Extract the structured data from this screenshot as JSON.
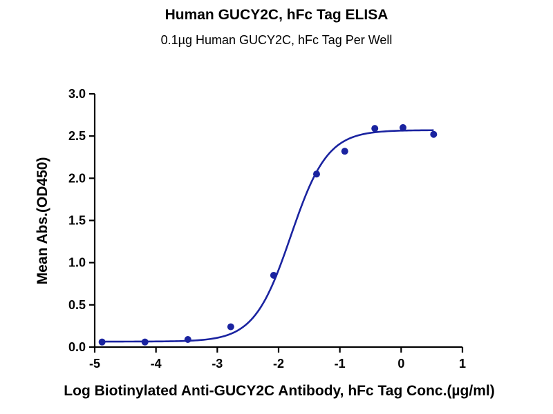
{
  "chart_data": {
    "type": "scatter",
    "title": "Human GUCY2C, hFc Tag ELISA",
    "subtitle": "0.1µg Human GUCY2C, hFc Tag Per Well",
    "xlabel": "Log Biotinylated Anti-GUCY2C Antibody, hFc Tag Conc.(µg/ml)",
    "ylabel": "Mean Abs.(OD450)",
    "xlim": [
      -5,
      1
    ],
    "ylim": [
      0,
      3
    ],
    "xticks": [
      "-5",
      "-4",
      "-3",
      "-2",
      "-1",
      "0",
      "1"
    ],
    "yticks": [
      "0.0",
      "0.5",
      "1.0",
      "1.5",
      "2.0",
      "2.5",
      "3.0"
    ],
    "grid": false,
    "color": "#1a23a0",
    "points": {
      "x": [
        -4.88,
        -4.18,
        -3.48,
        -2.78,
        -2.08,
        -1.38,
        -0.92,
        -0.43,
        0.03,
        0.53
      ],
      "y": [
        0.06,
        0.06,
        0.09,
        0.24,
        0.85,
        2.05,
        2.32,
        2.59,
        2.6,
        2.52
      ]
    },
    "fit": {
      "model": "4PL",
      "bottom": 0.065,
      "top": 2.57,
      "logEC50": -1.8,
      "hill": 1.45
    }
  }
}
